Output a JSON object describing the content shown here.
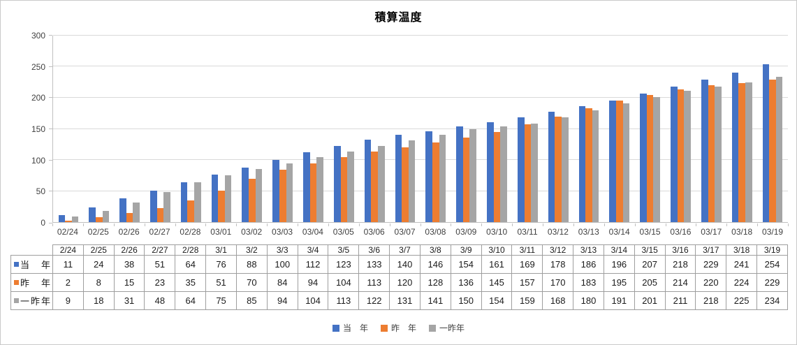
{
  "title": "積算温度",
  "colors": {
    "series_this_year": "#4472C4",
    "series_last_year": "#ED7D31",
    "series_two_years_ago": "#A5A5A5",
    "grid_line": "#d9d9d9",
    "axis_line": "#bfbfbf",
    "table_border": "#9e9e9e",
    "axis_text": "#404040"
  },
  "chart_data": {
    "type": "bar",
    "title": "積算温度",
    "xlabel": "",
    "ylabel": "",
    "ylim": [
      0,
      300
    ],
    "yticks": [
      0,
      50,
      100,
      150,
      200,
      250,
      300
    ],
    "grid": true,
    "legend_position": "bottom",
    "categories": [
      "02/24",
      "02/25",
      "02/26",
      "02/27",
      "02/28",
      "03/01",
      "03/02",
      "03/03",
      "03/04",
      "03/05",
      "03/06",
      "03/07",
      "03/08",
      "03/09",
      "03/10",
      "03/11",
      "03/12",
      "03/13",
      "03/14",
      "03/15",
      "03/16",
      "03/17",
      "03/18",
      "03/19"
    ],
    "table_categories": [
      "2/24",
      "2/25",
      "2/26",
      "2/27",
      "2/28",
      "3/1",
      "3/2",
      "3/3",
      "3/4",
      "3/5",
      "3/6",
      "3/7",
      "3/8",
      "3/9",
      "3/10",
      "3/11",
      "3/12",
      "3/13",
      "3/14",
      "3/15",
      "3/16",
      "3/17",
      "3/18",
      "3/19"
    ],
    "series": [
      {
        "name": "当　年",
        "color": "#4472C4",
        "values": [
          11,
          24,
          38,
          51,
          64,
          76,
          88,
          100,
          112,
          123,
          133,
          140,
          146,
          154,
          161,
          169,
          178,
          186,
          196,
          207,
          218,
          229,
          241,
          254
        ]
      },
      {
        "name": "昨　年",
        "color": "#ED7D31",
        "values": [
          2,
          8,
          15,
          23,
          35,
          51,
          70,
          84,
          94,
          104,
          113,
          120,
          128,
          136,
          145,
          157,
          170,
          183,
          195,
          205,
          214,
          220,
          224,
          229
        ]
      },
      {
        "name": "一昨年",
        "color": "#A5A5A5",
        "values": [
          9,
          18,
          31,
          48,
          64,
          75,
          85,
          94,
          104,
          113,
          122,
          131,
          141,
          150,
          154,
          159,
          168,
          180,
          191,
          201,
          211,
          218,
          225,
          234
        ]
      }
    ]
  }
}
